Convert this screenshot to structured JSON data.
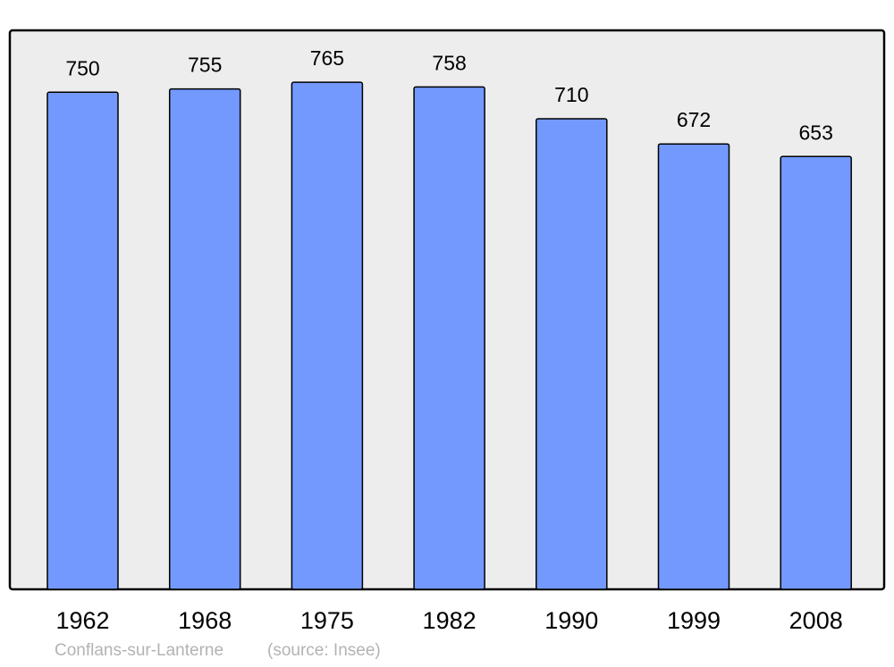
{
  "chart_data": {
    "type": "bar",
    "categories": [
      "1962",
      "1968",
      "1975",
      "1982",
      "1990",
      "1999",
      "2008"
    ],
    "values": [
      750,
      755,
      765,
      758,
      710,
      672,
      653
    ],
    "title": "",
    "xlabel": "",
    "ylabel": "",
    "ylim": [
      0,
      842
    ],
    "grid": false,
    "bar_color": "#7399ff",
    "background_color": "#ededed"
  },
  "footer": {
    "place": "Conflans-sur-Lanterne",
    "source": "(source: Insee)"
  }
}
